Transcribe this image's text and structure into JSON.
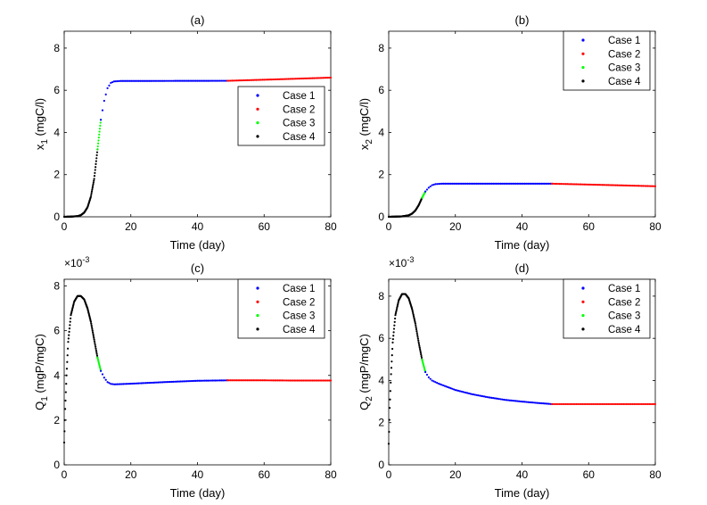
{
  "colors": {
    "Case 1": "#0000ff",
    "Case 2": "#ff0000",
    "Case 3": "#00ff00",
    "Case 4": "#000000"
  },
  "chart_data": [
    {
      "type": "scatter",
      "panel": "a",
      "title": "(a)",
      "xlabel": "Time (day)",
      "ylabel_main": "x",
      "ylabel_sub": "1",
      "ylabel_rest": " (mgC/l)",
      "xlim": [
        0,
        80
      ],
      "ylim": [
        0,
        8.8
      ],
      "xticks": [
        0,
        20,
        40,
        60,
        80
      ],
      "yticks": [
        0,
        2,
        4,
        6,
        8
      ],
      "exponent_label": "",
      "legend_position": "center-right",
      "legend": [
        "Case 1",
        "Case 2",
        "Case 3",
        "Case 4"
      ],
      "series": [
        {
          "name": "Case 4",
          "points": [
            [
              0,
              0.0
            ],
            [
              2,
              0.01
            ],
            [
              4,
              0.03
            ],
            [
              5,
              0.08
            ],
            [
              6,
              0.2
            ],
            [
              7,
              0.45
            ],
            [
              8,
              0.95
            ],
            [
              9,
              1.8
            ],
            [
              10,
              3.2
            ]
          ]
        },
        {
          "name": "Case 3",
          "points": [
            [
              10,
              3.2
            ],
            [
              10.5,
              3.9
            ],
            [
              11,
              4.6
            ]
          ]
        },
        {
          "name": "Case 1",
          "points": [
            [
              11,
              4.6
            ],
            [
              12,
              5.5
            ],
            [
              13,
              6.1
            ],
            [
              14,
              6.35
            ],
            [
              15,
              6.42
            ],
            [
              17,
              6.44
            ],
            [
              49,
              6.45
            ]
          ]
        },
        {
          "name": "Case 2",
          "points": [
            [
              49,
              6.45
            ],
            [
              60,
              6.5
            ],
            [
              70,
              6.55
            ],
            [
              80,
              6.6
            ]
          ]
        }
      ]
    },
    {
      "type": "scatter",
      "panel": "b",
      "title": "(b)",
      "xlabel": "Time (day)",
      "ylabel_main": "x",
      "ylabel_sub": "2",
      "ylabel_rest": " (mgC/l)",
      "xlim": [
        0,
        80
      ],
      "ylim": [
        0,
        8.8
      ],
      "xticks": [
        0,
        20,
        40,
        60,
        80
      ],
      "yticks": [
        0,
        2,
        4,
        6,
        8
      ],
      "exponent_label": "",
      "legend_position": "top-right",
      "legend": [
        "Case 1",
        "Case 2",
        "Case 3",
        "Case 4"
      ],
      "series": [
        {
          "name": "Case 4",
          "points": [
            [
              0,
              0.0
            ],
            [
              2,
              0.01
            ],
            [
              4,
              0.02
            ],
            [
              6,
              0.07
            ],
            [
              7,
              0.15
            ],
            [
              8,
              0.3
            ],
            [
              9,
              0.55
            ],
            [
              10,
              0.9
            ]
          ]
        },
        {
          "name": "Case 3",
          "points": [
            [
              10,
              0.9
            ],
            [
              10.5,
              1.05
            ],
            [
              11,
              1.2
            ]
          ]
        },
        {
          "name": "Case 1",
          "points": [
            [
              11,
              1.2
            ],
            [
              12,
              1.38
            ],
            [
              13,
              1.5
            ],
            [
              14,
              1.55
            ],
            [
              16,
              1.57
            ],
            [
              49,
              1.57
            ]
          ]
        },
        {
          "name": "Case 2",
          "points": [
            [
              49,
              1.57
            ],
            [
              60,
              1.53
            ],
            [
              70,
              1.49
            ],
            [
              80,
              1.45
            ]
          ]
        }
      ]
    },
    {
      "type": "scatter",
      "panel": "c",
      "title": "(c)",
      "xlabel": "Time (day)",
      "ylabel_main": "Q",
      "ylabel_sub": "1",
      "ylabel_rest": " (mgP/mgC)",
      "xlim": [
        0,
        80
      ],
      "ylim": [
        0,
        8.3
      ],
      "xticks": [
        0,
        20,
        40,
        60,
        80
      ],
      "yticks": [
        0,
        2,
        4,
        6,
        8
      ],
      "exponent_label": "×10",
      "exponent_power": "-3",
      "legend_position": "top-right",
      "legend": [
        "Case 1",
        "Case 2",
        "Case 3",
        "Case 4"
      ],
      "series": [
        {
          "name": "Case 4",
          "points": [
            [
              0,
              1.0
            ],
            [
              0.3,
              2.5
            ],
            [
              0.7,
              4.0
            ],
            [
              1.2,
              5.5
            ],
            [
              2,
              6.7
            ],
            [
              3,
              7.3
            ],
            [
              4,
              7.55
            ],
            [
              5,
              7.55
            ],
            [
              6,
              7.4
            ],
            [
              7,
              7.0
            ],
            [
              8,
              6.4
            ],
            [
              9,
              5.6
            ],
            [
              10,
              4.8
            ]
          ]
        },
        {
          "name": "Case 3",
          "points": [
            [
              10,
              4.8
            ],
            [
              10.5,
              4.5
            ],
            [
              11,
              4.2
            ]
          ]
        },
        {
          "name": "Case 1",
          "points": [
            [
              11,
              4.2
            ],
            [
              12,
              3.9
            ],
            [
              13,
              3.7
            ],
            [
              14,
              3.62
            ],
            [
              15,
              3.6
            ],
            [
              20,
              3.63
            ],
            [
              30,
              3.7
            ],
            [
              40,
              3.76
            ],
            [
              49,
              3.78
            ]
          ]
        },
        {
          "name": "Case 2",
          "points": [
            [
              49,
              3.78
            ],
            [
              60,
              3.78
            ],
            [
              70,
              3.77
            ],
            [
              80,
              3.77
            ]
          ]
        }
      ]
    },
    {
      "type": "scatter",
      "panel": "d",
      "title": "(d)",
      "xlabel": "Time (day)",
      "ylabel_main": "Q",
      "ylabel_sub": "2",
      "ylabel_rest": " (mgP/mgC)",
      "xlim": [
        0,
        80
      ],
      "ylim": [
        0,
        8.8
      ],
      "xticks": [
        0,
        20,
        40,
        60,
        80
      ],
      "yticks": [
        0,
        2,
        4,
        6,
        8
      ],
      "exponent_label": "×10",
      "exponent_power": "-3",
      "legend_position": "top-right",
      "legend": [
        "Case 1",
        "Case 2",
        "Case 3",
        "Case 4"
      ],
      "series": [
        {
          "name": "Case 4",
          "points": [
            [
              0,
              1.0
            ],
            [
              0.3,
              2.7
            ],
            [
              0.7,
              4.3
            ],
            [
              1.2,
              5.8
            ],
            [
              2,
              7.1
            ],
            [
              3,
              7.8
            ],
            [
              4,
              8.1
            ],
            [
              5,
              8.1
            ],
            [
              6,
              7.9
            ],
            [
              7,
              7.4
            ],
            [
              8,
              6.7
            ],
            [
              9,
              5.8
            ],
            [
              10,
              5.0
            ]
          ]
        },
        {
          "name": "Case 3",
          "points": [
            [
              10,
              5.0
            ],
            [
              10.5,
              4.7
            ],
            [
              11,
              4.4
            ]
          ]
        },
        {
          "name": "Case 1",
          "points": [
            [
              11,
              4.4
            ],
            [
              12,
              4.15
            ],
            [
              13,
              4.0
            ],
            [
              15,
              3.85
            ],
            [
              20,
              3.55
            ],
            [
              25,
              3.35
            ],
            [
              30,
              3.2
            ],
            [
              35,
              3.08
            ],
            [
              40,
              3.0
            ],
            [
              45,
              2.93
            ],
            [
              49,
              2.88
            ]
          ]
        },
        {
          "name": "Case 2",
          "points": [
            [
              49,
              2.88
            ],
            [
              60,
              2.88
            ],
            [
              70,
              2.88
            ],
            [
              80,
              2.88
            ]
          ]
        }
      ]
    }
  ]
}
